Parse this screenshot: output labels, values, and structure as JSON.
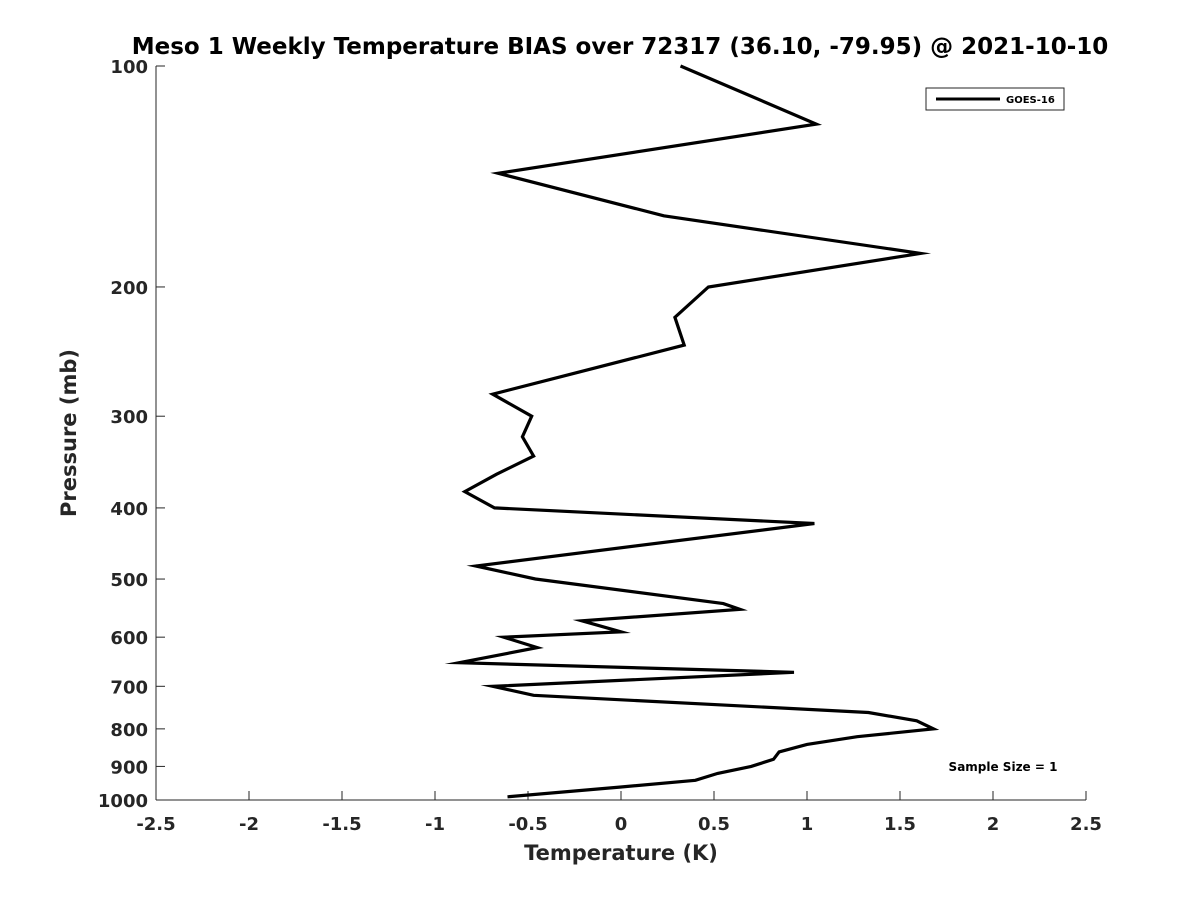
{
  "chart_data": {
    "type": "line",
    "title": "Meso 1 Weekly Temperature BIAS over 72317 (36.10, -79.95) @ 2021-10-10",
    "xlabel": "Temperature (K)",
    "ylabel": "Pressure (mb)",
    "xlim": [
      -2.5,
      2.5
    ],
    "ylim": [
      100,
      1000
    ],
    "y_scale": "log",
    "y_reversed": true,
    "grid": false,
    "legend_position": "top-right",
    "x_ticks": [
      -2.5,
      -2,
      -1.5,
      -1,
      -0.5,
      0,
      0.5,
      1,
      1.5,
      2,
      2.5
    ],
    "x_tick_labels": [
      "-2.5",
      "-2",
      "-1.5",
      "-1",
      "-0.5",
      "0",
      "0.5",
      "1",
      "1.5",
      "2",
      "2.5"
    ],
    "y_ticks": [
      100,
      200,
      300,
      400,
      500,
      600,
      700,
      800,
      900,
      1000
    ],
    "y_tick_labels": [
      "100",
      "200",
      "300",
      "400",
      "500",
      "600",
      "700",
      "800",
      "900",
      "1000"
    ],
    "series": [
      {
        "name": "GOES-16",
        "color": "#000000",
        "points": [
          {
            "x": 0.32,
            "y": 100
          },
          {
            "x": 1.05,
            "y": 120
          },
          {
            "x": -0.66,
            "y": 140
          },
          {
            "x": 0.23,
            "y": 160
          },
          {
            "x": 1.61,
            "y": 180
          },
          {
            "x": 0.47,
            "y": 200
          },
          {
            "x": 0.29,
            "y": 220
          },
          {
            "x": 0.34,
            "y": 240
          },
          {
            "x": -0.69,
            "y": 280
          },
          {
            "x": -0.48,
            "y": 300
          },
          {
            "x": -0.53,
            "y": 320
          },
          {
            "x": -0.47,
            "y": 340
          },
          {
            "x": -0.67,
            "y": 360
          },
          {
            "x": -0.84,
            "y": 380
          },
          {
            "x": -0.68,
            "y": 400
          },
          {
            "x": 1.04,
            "y": 420
          },
          {
            "x": -0.78,
            "y": 480
          },
          {
            "x": -0.46,
            "y": 500
          },
          {
            "x": 0.55,
            "y": 540
          },
          {
            "x": 0.64,
            "y": 550
          },
          {
            "x": -0.21,
            "y": 570
          },
          {
            "x": 0.0,
            "y": 590
          },
          {
            "x": -0.63,
            "y": 600
          },
          {
            "x": -0.45,
            "y": 620
          },
          {
            "x": -0.87,
            "y": 650
          },
          {
            "x": 0.93,
            "y": 670
          },
          {
            "x": -0.69,
            "y": 700
          },
          {
            "x": -0.47,
            "y": 720
          },
          {
            "x": 1.33,
            "y": 760
          },
          {
            "x": 1.59,
            "y": 780
          },
          {
            "x": 1.68,
            "y": 800
          },
          {
            "x": 1.27,
            "y": 820
          },
          {
            "x": 1.0,
            "y": 840
          },
          {
            "x": 0.85,
            "y": 860
          },
          {
            "x": 0.82,
            "y": 880
          },
          {
            "x": 0.7,
            "y": 900
          },
          {
            "x": 0.52,
            "y": 920
          },
          {
            "x": 0.4,
            "y": 940
          },
          {
            "x": 0.0,
            "y": 960
          },
          {
            "x": -0.61,
            "y": 990
          }
        ]
      }
    ],
    "annotations": [
      {
        "text": "Sample Size = 1",
        "position": "bottom-right"
      }
    ]
  }
}
